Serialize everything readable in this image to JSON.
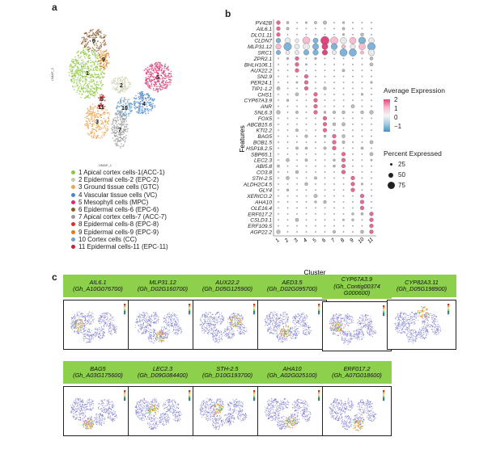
{
  "panels": {
    "a": "a",
    "b": "b",
    "c": "c"
  },
  "umap": {
    "x_label": "UMAP_1",
    "y_label": "UMAP_2"
  },
  "clusters": [
    {
      "id": "1",
      "label": "1 Apical cortex cells-1(ACC-1)",
      "color": "#8cc63f"
    },
    {
      "id": "2",
      "label": "2 Epidermal cells-2 (EPC-2)",
      "color": "#c9c9a8"
    },
    {
      "id": "3",
      "label": "3 Ground tissue cells (GTC)",
      "color": "#e8a552"
    },
    {
      "id": "4",
      "label": "4 Vascular tissue cells (VC)",
      "color": "#4a86c5"
    },
    {
      "id": "5",
      "label": "5 Mesophyll cells (MPC)",
      "color": "#d62d6d"
    },
    {
      "id": "6",
      "label": "6 Epidermal cells-6 (EPC-6)",
      "color": "#8b5a2b"
    },
    {
      "id": "7",
      "label": "7 Apical cortex cells-7 (ACC-7)",
      "color": "#9a9a9a"
    },
    {
      "id": "8",
      "label": "8 Epidermal cells-8 (EPC-8)",
      "color": "#d9302f"
    },
    {
      "id": "9",
      "label": "9 Epidermal cells-9 (EPC-9)",
      "color": "#e07b1a"
    },
    {
      "id": "10",
      "label": "10 Cortex cells (CC)",
      "color": "#6fa3c9"
    },
    {
      "id": "11",
      "label": "11 Epidermal cells-11 (EPC-11)",
      "color": "#c8203d"
    }
  ],
  "dotplot": {
    "y_title": "Features",
    "x_title": "Cluster",
    "clusters": [
      "1",
      "2",
      "3",
      "4",
      "5",
      "6",
      "7",
      "8",
      "9",
      "10",
      "11"
    ],
    "genes": [
      "PV42B",
      "AIL6.1",
      "DLO1.11",
      "CLDN7",
      "MLP31.12",
      "SRC1",
      "ZPR2.1",
      "BHLH106.1",
      "AUX22.2",
      "SN2.9",
      "PER24.1",
      "TIP1-1.2",
      "CHS1",
      "CYP67A3.9",
      "ANR",
      "SNL6.3",
      "FOX5",
      "ABCB15.6",
      "KTI2.2",
      "BAG5",
      "BOB1.5",
      "HSP18.2.5",
      "SBP65.1",
      "LEC2.3",
      "ABI5.8",
      "CO3.8",
      "STH-2.5",
      "ALDH2C4.5",
      "GLY4",
      "XERICO.2",
      "AHA10",
      "OLE16.4",
      "ERF017.2",
      "CSLD3.1",
      "ERF109.5",
      "AGP22.2"
    ],
    "markers": [
      [
        0,
        1
      ],
      [
        1,
        1
      ],
      [
        2,
        1
      ],
      [
        3,
        6
      ],
      [
        4,
        6
      ],
      [
        5,
        6
      ],
      [
        6,
        3
      ],
      [
        7,
        3
      ],
      [
        8,
        3
      ],
      [
        9,
        4
      ],
      [
        10,
        4
      ],
      [
        11,
        4
      ],
      [
        12,
        5
      ],
      [
        13,
        5
      ],
      [
        14,
        5
      ],
      [
        15,
        5
      ],
      [
        16,
        6
      ],
      [
        17,
        6
      ],
      [
        18,
        6
      ],
      [
        19,
        7
      ],
      [
        20,
        7
      ],
      [
        21,
        7
      ],
      [
        22,
        8
      ],
      [
        23,
        8
      ],
      [
        24,
        8
      ],
      [
        25,
        8
      ],
      [
        26,
        9
      ],
      [
        27,
        9
      ],
      [
        28,
        9
      ],
      [
        29,
        10
      ],
      [
        30,
        10
      ],
      [
        31,
        10
      ],
      [
        32,
        11
      ],
      [
        33,
        11
      ],
      [
        34,
        11
      ],
      [
        35,
        11
      ]
    ],
    "legend": {
      "avg_title": "Average Expression",
      "avg_ticks": [
        "2",
        "1",
        "0",
        "−1"
      ],
      "pct_title": "Percent Expressed",
      "pct_ticks": [
        "25",
        "50",
        "75"
      ]
    }
  },
  "genes_c": [
    {
      "name": "AIL6.1",
      "id": "(Gh_A10G076700)"
    },
    {
      "name": "MLP31.12",
      "id": "(Gh_D02G160700)"
    },
    {
      "name": "AUX22.2",
      "id": "(Gh_D05G125900)"
    },
    {
      "name": "AED3.5",
      "id": "(Gh_D02G095700)"
    },
    {
      "name": "CYP67A3.9",
      "id": "(Gh_Contig00374",
      "id2": "G000600)"
    },
    {
      "name": "CYP82A3.11",
      "id": "(Gh_D05G198900)"
    },
    {
      "name": "BAG5",
      "id": "(Gh_A03G175600)"
    },
    {
      "name": "LEC2.3",
      "id": "(Gh_D09G084400)"
    },
    {
      "name": "STH-2.5",
      "id": "(Gh_D10G193700)"
    },
    {
      "name": "AHA10",
      "id": "(Gh_A02G025100)"
    },
    {
      "name": "ERF017.2",
      "id": "(Gh_A07G018600)"
    }
  ]
}
